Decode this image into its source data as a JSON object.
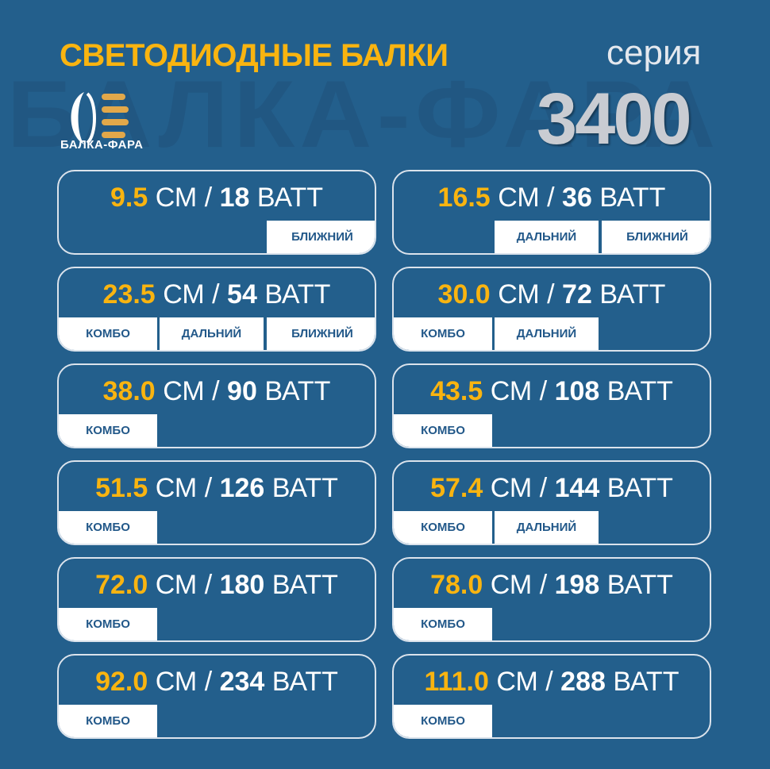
{
  "header": {
    "title": "СВЕТОДИОДНЫЕ БАЛКИ",
    "series_label": "серия",
    "series_number": "3400",
    "logo_text": "БАЛКА-ФАРА",
    "watermark": "БАЛКА-ФАРА"
  },
  "units": {
    "length": "СМ",
    "separator": "/",
    "power": "ВАТТ"
  },
  "tag_labels": [
    "КОМБО",
    "ДАЛЬНИЙ",
    "БЛИЖНИЙ"
  ],
  "colors": {
    "background": "#235f8c",
    "accent": "#f9b410",
    "tag_text": "#225889"
  },
  "models": [
    {
      "length": "9.5",
      "watt": "18",
      "tags": [
        "БЛИЖНИЙ"
      ]
    },
    {
      "length": "16.5",
      "watt": "36",
      "tags": [
        "ДАЛЬНИЙ",
        "БЛИЖНИЙ"
      ]
    },
    {
      "length": "23.5",
      "watt": "54",
      "tags": [
        "КОМБО",
        "ДАЛЬНИЙ",
        "БЛИЖНИЙ"
      ]
    },
    {
      "length": "30.0",
      "watt": "72",
      "tags": [
        "КОМБО",
        "ДАЛЬНИЙ"
      ]
    },
    {
      "length": "38.0",
      "watt": "90",
      "tags": [
        "КОМБО"
      ]
    },
    {
      "length": "43.5",
      "watt": "108",
      "tags": [
        "КОМБО"
      ]
    },
    {
      "length": "51.5",
      "watt": "126",
      "tags": [
        "КОМБО"
      ]
    },
    {
      "length": "57.4",
      "watt": "144",
      "tags": [
        "КОМБО",
        "ДАЛЬНИЙ"
      ]
    },
    {
      "length": "72.0",
      "watt": "180",
      "tags": [
        "КОМБО"
      ]
    },
    {
      "length": "78.0",
      "watt": "198",
      "tags": [
        "КОМБО"
      ]
    },
    {
      "length": "92.0",
      "watt": "234",
      "tags": [
        "КОМБО"
      ]
    },
    {
      "length": "111.0",
      "watt": "288",
      "tags": [
        "КОМБО"
      ]
    }
  ]
}
